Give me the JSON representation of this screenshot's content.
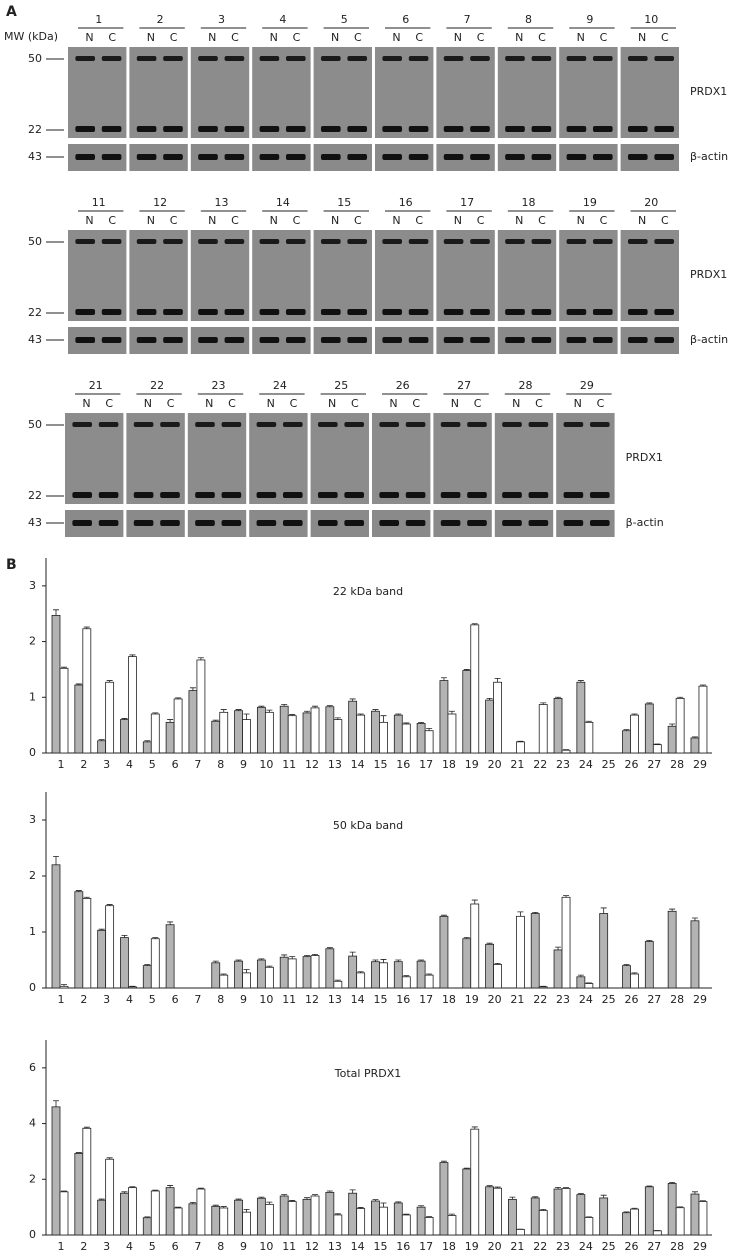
{
  "panel_a": {
    "label": "A",
    "mw_header": "MW (kDa)",
    "sample_labels": [
      "N",
      "C"
    ],
    "rows": [
      {
        "lanes": [
          "1",
          "2",
          "3",
          "4",
          "5",
          "6",
          "7",
          "8",
          "9",
          "10"
        ],
        "markers": [
          "50",
          "22",
          "43"
        ],
        "proteins": [
          "PRDX1",
          "β-actin"
        ]
      },
      {
        "lanes": [
          "11",
          "12",
          "13",
          "14",
          "15",
          "16",
          "17",
          "18",
          "19",
          "20"
        ],
        "markers": [
          "50",
          "22",
          "43"
        ],
        "proteins": [
          "PRDX1",
          "β-actin"
        ]
      },
      {
        "lanes": [
          "21",
          "22",
          "23",
          "24",
          "25",
          "26",
          "27",
          "28",
          "29"
        ],
        "markers": [
          "50",
          "22",
          "43"
        ],
        "proteins": [
          "PRDX1",
          "β-actin"
        ]
      }
    ]
  },
  "panel_b": {
    "label": "B"
  },
  "chart_data": [
    {
      "type": "bar",
      "title": "22 kDa band",
      "categories": [
        "1",
        "2",
        "3",
        "4",
        "5",
        "6",
        "7",
        "8",
        "9",
        "10",
        "11",
        "12",
        "13",
        "14",
        "15",
        "16",
        "17",
        "18",
        "19",
        "20",
        "21",
        "22",
        "23",
        "24",
        "25",
        "26",
        "27",
        "28",
        "29"
      ],
      "ylim": [
        0,
        3.5
      ],
      "yticks": [
        0,
        1,
        2,
        3
      ],
      "series": [
        {
          "color": "#b3b3b3",
          "values": [
            2.47,
            1.22,
            0.22,
            0.6,
            0.2,
            0.55,
            1.12,
            0.57,
            0.76,
            0.82,
            0.84,
            0.72,
            0.83,
            0.93,
            0.75,
            0.68,
            0.53,
            1.3,
            1.48,
            0.95,
            0,
            0,
            0.98,
            1.27,
            0,
            0.4,
            0.88,
            0.48,
            0.27
          ],
          "errors": [
            0.1,
            0.02,
            0.02,
            0.02,
            0.02,
            0.05,
            0.05,
            0.02,
            0.02,
            0.02,
            0.03,
            0.03,
            0.02,
            0.04,
            0.03,
            0.02,
            0.02,
            0.05,
            0.02,
            0.03,
            0,
            0,
            0.02,
            0.03,
            0,
            0.02,
            0.02,
            0.04,
            0.02
          ]
        },
        {
          "color": "#ffffff",
          "values": [
            1.52,
            2.23,
            1.27,
            1.73,
            0.7,
            0.97,
            1.67,
            0.73,
            0.6,
            0.73,
            0.67,
            0.81,
            0.6,
            0.68,
            0.55,
            0.52,
            0.4,
            0.7,
            2.3,
            1.27,
            0.2,
            0.87,
            0.05,
            0.55,
            0,
            0.68,
            0.15,
            0.98,
            1.2
          ],
          "errors": [
            0.02,
            0.03,
            0.03,
            0.03,
            0.02,
            0.02,
            0.04,
            0.05,
            0.1,
            0.04,
            0.02,
            0.03,
            0.03,
            0.02,
            0.12,
            0.02,
            0.04,
            0.05,
            0.02,
            0.07,
            0.01,
            0.03,
            0.01,
            0.02,
            0,
            0.02,
            0.01,
            0.02,
            0.02
          ]
        }
      ]
    },
    {
      "type": "bar",
      "title": "50 kDa band",
      "categories": [
        "1",
        "2",
        "3",
        "4",
        "5",
        "6",
        "7",
        "8",
        "9",
        "10",
        "11",
        "12",
        "13",
        "14",
        "15",
        "16",
        "17",
        "18",
        "19",
        "20",
        "21",
        "22",
        "23",
        "24",
        "25",
        "26",
        "27",
        "28",
        "29"
      ],
      "ylim": [
        0,
        3.5
      ],
      "yticks": [
        0,
        1,
        2,
        3
      ],
      "series": [
        {
          "color": "#b3b3b3",
          "values": [
            2.2,
            1.72,
            1.03,
            0.9,
            0.4,
            1.13,
            0,
            0.45,
            0.48,
            0.5,
            0.55,
            0.56,
            0.7,
            0.57,
            0.47,
            0.47,
            0.48,
            1.28,
            0.88,
            0.78,
            0,
            1.33,
            0.68,
            0.2,
            1.33,
            0.4,
            0.83,
            1.37,
            1.2
          ],
          "errors": [
            0.15,
            0.02,
            0.02,
            0.04,
            0.02,
            0.05,
            0,
            0.03,
            0.02,
            0.02,
            0.04,
            0.02,
            0.02,
            0.07,
            0.03,
            0.03,
            0.02,
            0.02,
            0.02,
            0.02,
            0,
            0.02,
            0.05,
            0.03,
            0.1,
            0.02,
            0.02,
            0.04,
            0.05
          ]
        },
        {
          "color": "#ffffff",
          "values": [
            0.03,
            1.6,
            1.47,
            0.02,
            0.88,
            0,
            0,
            0.23,
            0.27,
            0.37,
            0.52,
            0.58,
            0.12,
            0.27,
            0.45,
            0.2,
            0.23,
            0,
            1.5,
            0.42,
            1.28,
            0.02,
            1.62,
            0.08,
            0,
            0.25,
            0,
            0,
            0
          ],
          "errors": [
            0.03,
            0.02,
            0.02,
            0.01,
            0.02,
            0,
            0,
            0.02,
            0.06,
            0.02,
            0.04,
            0.02,
            0.02,
            0.02,
            0.06,
            0.02,
            0.02,
            0,
            0.07,
            0.02,
            0.08,
            0.01,
            0.03,
            0.01,
            0,
            0.02,
            0,
            0,
            0
          ]
        }
      ]
    },
    {
      "type": "bar",
      "title": "Total PRDX1",
      "categories": [
        "1",
        "2",
        "3",
        "4",
        "5",
        "6",
        "7",
        "8",
        "9",
        "10",
        "11",
        "12",
        "13",
        "14",
        "15",
        "16",
        "17",
        "18",
        "19",
        "20",
        "21",
        "22",
        "23",
        "24",
        "25",
        "26",
        "27",
        "28",
        "29"
      ],
      "ylim": [
        0,
        7
      ],
      "yticks": [
        0,
        2,
        4,
        6
      ],
      "series": [
        {
          "color": "#b3b3b3",
          "values": [
            4.6,
            2.93,
            1.25,
            1.5,
            0.62,
            1.7,
            1.12,
            1.03,
            1.25,
            1.32,
            1.4,
            1.28,
            1.53,
            1.5,
            1.22,
            1.15,
            1.0,
            2.6,
            2.37,
            1.73,
            1.28,
            1.33,
            1.65,
            1.45,
            1.33,
            0.8,
            1.73,
            1.85,
            1.47
          ],
          "errors": [
            0.22,
            0.03,
            0.04,
            0.05,
            0.03,
            0.08,
            0.05,
            0.04,
            0.04,
            0.04,
            0.05,
            0.06,
            0.05,
            0.12,
            0.05,
            0.04,
            0.05,
            0.05,
            0.03,
            0.04,
            0.08,
            0.04,
            0.06,
            0.04,
            0.1,
            0.03,
            0.03,
            0.04,
            0.08
          ]
        },
        {
          "color": "#ffffff",
          "values": [
            1.55,
            3.83,
            2.72,
            1.7,
            1.58,
            0.97,
            1.65,
            0.97,
            0.82,
            1.1,
            1.2,
            1.4,
            0.72,
            0.95,
            1.0,
            0.72,
            0.63,
            0.7,
            3.8,
            1.68,
            0.2,
            0.88,
            1.67,
            0.63,
            0,
            0.93,
            0.15,
            0.98,
            1.2
          ],
          "errors": [
            0.03,
            0.04,
            0.05,
            0.03,
            0.03,
            0.03,
            0.03,
            0.05,
            0.1,
            0.08,
            0.04,
            0.05,
            0.04,
            0.04,
            0.15,
            0.03,
            0.03,
            0.05,
            0.08,
            0.04,
            0.01,
            0.04,
            0.03,
            0.02,
            0,
            0.03,
            0.01,
            0.03,
            0.03
          ]
        }
      ]
    }
  ]
}
